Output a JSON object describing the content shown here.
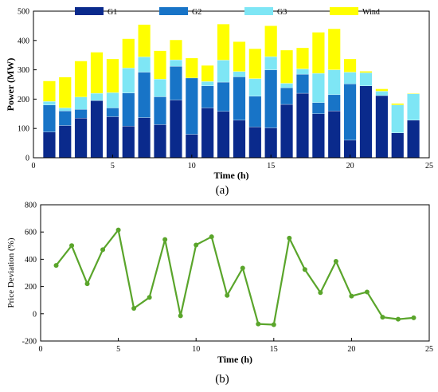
{
  "chart_data": [
    {
      "type": "bar",
      "stacked": true,
      "panel_label": "(a)",
      "xlabel": "Time (h)",
      "ylabel": "Power (MW)",
      "xlim": [
        0,
        25
      ],
      "ylim": [
        0,
        500
      ],
      "xticks": [
        "0",
        "5",
        "10",
        "15",
        "20",
        "25"
      ],
      "yticks": [
        "0",
        "100",
        "200",
        "300",
        "400",
        "500"
      ],
      "legend_position": "top",
      "grid": false,
      "categories": [
        1,
        2,
        3,
        4,
        5,
        6,
        7,
        8,
        9,
        10,
        11,
        12,
        13,
        14,
        15,
        16,
        17,
        18,
        19,
        20,
        21,
        22,
        23,
        24
      ],
      "series": [
        {
          "name": "G1",
          "color": "#0a2a8c",
          "values": [
            88,
            110,
            135,
            195,
            140,
            108,
            137,
            113,
            197,
            80,
            170,
            158,
            128,
            105,
            102,
            182,
            220,
            150,
            160,
            60,
            245,
            212,
            85,
            128
          ]
        },
        {
          "name": "G2",
          "color": "#1874c7",
          "values": [
            92,
            50,
            30,
            0,
            30,
            113,
            155,
            95,
            115,
            192,
            75,
            100,
            148,
            105,
            198,
            57,
            65,
            38,
            55,
            192,
            0,
            0,
            0,
            0
          ]
        },
        {
          "name": "G3",
          "color": "#7ee6f5",
          "values": [
            12,
            10,
            42,
            25,
            52,
            85,
            52,
            60,
            22,
            0,
            15,
            75,
            18,
            60,
            45,
            15,
            18,
            100,
            85,
            40,
            45,
            15,
            95,
            90
          ]
        },
        {
          "name": "Wind",
          "color": "#ffff00",
          "values": [
            70,
            105,
            123,
            140,
            115,
            100,
            110,
            97,
            68,
            68,
            55,
            123,
            102,
            102,
            105,
            113,
            72,
            140,
            140,
            45,
            5,
            8,
            5,
            2
          ]
        }
      ]
    },
    {
      "type": "line",
      "panel_label": "(b)",
      "xlabel": "Time (h)",
      "ylabel": "Price Deviation (%)",
      "xlim": [
        0,
        25
      ],
      "ylim": [
        -200,
        800
      ],
      "xticks": [
        "0",
        "5",
        "10",
        "15",
        "20",
        "25"
      ],
      "yticks": [
        "-200",
        "0",
        "200",
        "400",
        "600",
        "800"
      ],
      "grid": false,
      "series": [
        {
          "color": "#5aa52b",
          "x": [
            1,
            2,
            3,
            4,
            5,
            6,
            7,
            8,
            9,
            10,
            11,
            12,
            13,
            14,
            15,
            16,
            17,
            18,
            19,
            20,
            21,
            22,
            23,
            24
          ],
          "y": [
            355,
            500,
            220,
            470,
            615,
            40,
            120,
            545,
            -15,
            505,
            565,
            135,
            335,
            -75,
            -80,
            555,
            325,
            155,
            385,
            130,
            160,
            -25,
            -40,
            -30
          ]
        }
      ]
    }
  ]
}
